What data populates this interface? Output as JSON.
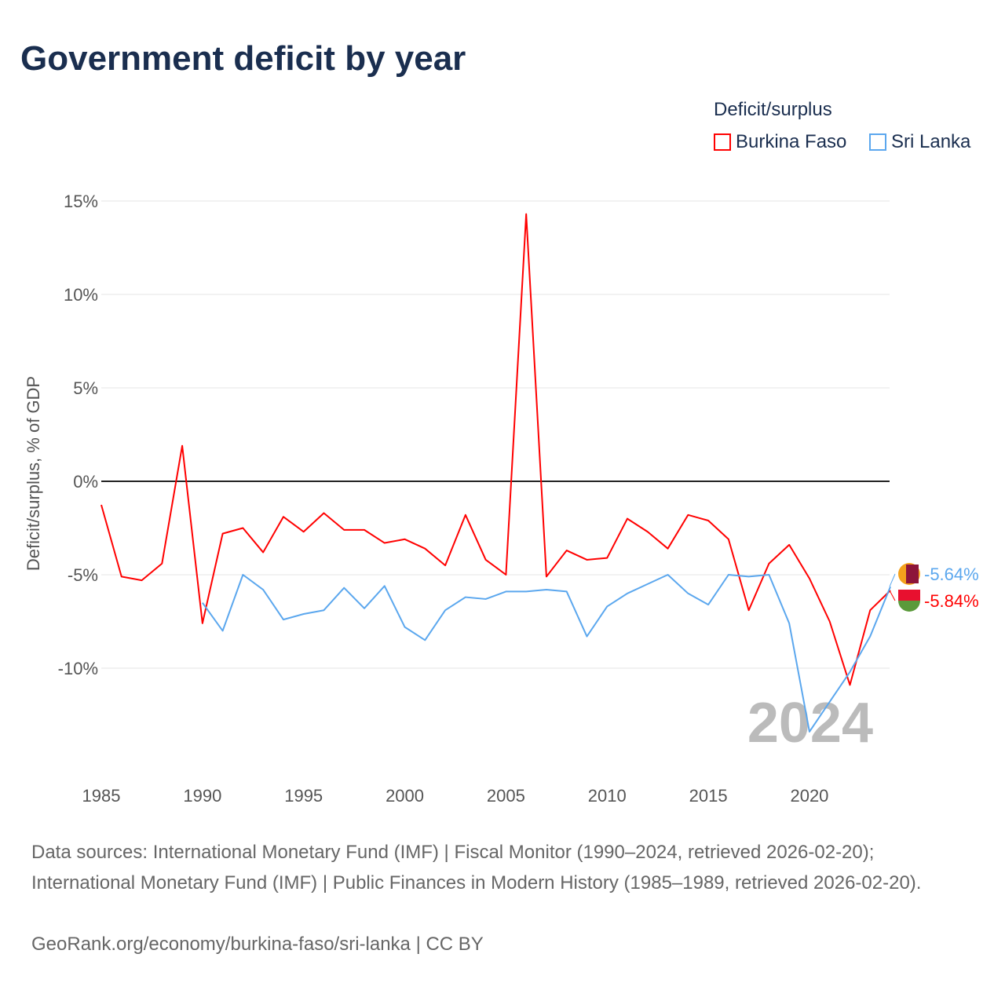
{
  "chart_data": {
    "type": "line",
    "title": "Government deficit by year",
    "xlabel": "",
    "ylabel": "Deficit/surplus, % of GDP",
    "ylim": [
      -15,
      15
    ],
    "xlim": [
      1985,
      2024
    ],
    "yticks": [
      15,
      10,
      5,
      0,
      -5,
      -10
    ],
    "ytick_labels": [
      "15%",
      "10%",
      "5%",
      "0%",
      "-5%",
      "-10%"
    ],
    "xticks": [
      1985,
      1990,
      1995,
      2000,
      2005,
      2010,
      2015,
      2020
    ],
    "xtick_labels": [
      "1985",
      "1990",
      "1995",
      "2000",
      "2005",
      "2010",
      "2015",
      "2020"
    ],
    "legend_title": "Deficit/surplus",
    "legend_position": "top-right",
    "year_watermark": "2024",
    "series": [
      {
        "name": "Burkina Faso",
        "color": "#ff0000",
        "end_label": "-5.84%",
        "x": [
          1985,
          1986,
          1987,
          1988,
          1989,
          1990,
          1991,
          1992,
          1993,
          1994,
          1995,
          1996,
          1997,
          1998,
          1999,
          2000,
          2001,
          2002,
          2003,
          2004,
          2005,
          2006,
          2007,
          2008,
          2009,
          2010,
          2011,
          2012,
          2013,
          2014,
          2015,
          2016,
          2017,
          2018,
          2019,
          2020,
          2021,
          2022,
          2023,
          2024
        ],
        "values": [
          -1.26,
          -5.1,
          -5.3,
          -4.4,
          1.9,
          -7.6,
          -2.8,
          -2.5,
          -3.8,
          -1.9,
          -2.7,
          -1.7,
          -2.6,
          -2.6,
          -3.3,
          -3.1,
          -3.6,
          -4.5,
          -1.8,
          -4.2,
          -5.0,
          14.3,
          -5.1,
          -3.7,
          -4.2,
          -4.1,
          -2.0,
          -2.7,
          -3.6,
          -1.8,
          -2.1,
          -3.1,
          -6.9,
          -4.4,
          -3.4,
          -5.2,
          -7.5,
          -10.9,
          -6.9,
          -5.84
        ]
      },
      {
        "name": "Sri Lanka",
        "color": "#5ba7ee",
        "end_label": "-5.64%",
        "x": [
          1990,
          1991,
          1992,
          1993,
          1994,
          1995,
          1996,
          1997,
          1998,
          1999,
          2000,
          2001,
          2002,
          2003,
          2004,
          2005,
          2006,
          2007,
          2008,
          2009,
          2010,
          2011,
          2012,
          2013,
          2014,
          2015,
          2016,
          2017,
          2018,
          2019,
          2020,
          2021,
          2022,
          2023,
          2024
        ],
        "values": [
          -6.5,
          -8.0,
          -5.0,
          -5.8,
          -7.4,
          -7.1,
          -6.9,
          -5.7,
          -6.8,
          -5.6,
          -7.8,
          -8.5,
          -6.9,
          -6.2,
          -6.3,
          -5.9,
          -5.9,
          -5.8,
          -5.9,
          -8.3,
          -6.7,
          -6.0,
          -5.5,
          -5.0,
          -6.0,
          -6.6,
          -5.0,
          -5.1,
          -5.0,
          -7.6,
          -13.4,
          -11.8,
          -10.2,
          -8.3,
          -5.64
        ]
      }
    ]
  },
  "footer": {
    "sources": "Data sources: International Monetary Fund (IMF) | Fiscal Monitor (1990–2024, retrieved 2026-02-20); International Monetary Fund (IMF) | Public Finances in Modern History (1985–1989, retrieved 2026-02-20).",
    "attribution": "GeoRank.org/economy/burkina-faso/sri-lanka | CC BY"
  }
}
